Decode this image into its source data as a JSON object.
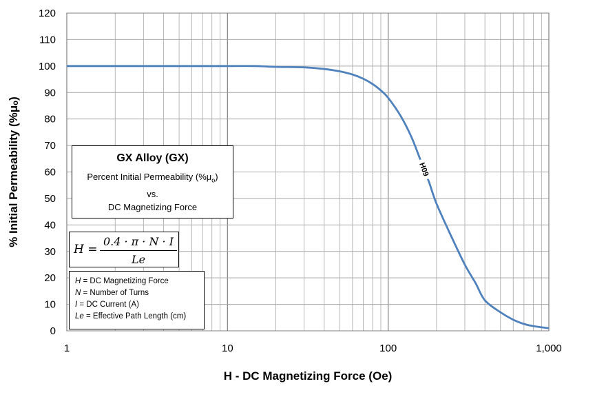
{
  "chart_data": {
    "type": "line",
    "xscale": "log",
    "xlim": [
      1,
      1000
    ],
    "ylim": [
      0,
      120
    ],
    "x_ticks": [
      1,
      10,
      100,
      1000
    ],
    "x_tick_labels": [
      "1",
      "10",
      "100",
      "1,000"
    ],
    "y_ticks": [
      0,
      10,
      20,
      30,
      40,
      50,
      60,
      70,
      80,
      90,
      100,
      110,
      120
    ],
    "xlabel": "H - DC Magnetizing  Force (Oe)",
    "ylabel": "% Initial Permeability (%μₒ)",
    "grid": true,
    "series": [
      {
        "name": "H09",
        "color": "#4F81BD",
        "x": [
          1,
          5,
          10,
          15,
          20,
          30,
          40,
          50,
          60,
          70,
          80,
          90,
          100,
          120,
          140,
          160,
          180,
          200,
          250,
          300,
          350,
          400,
          500,
          600,
          700,
          800,
          1000
        ],
        "y": [
          100,
          100,
          100,
          100,
          99.7,
          99.5,
          98.9,
          98,
          96.8,
          95.2,
          93.2,
          90.8,
          88,
          81,
          73,
          64,
          56,
          48,
          35,
          25,
          18,
          11.5,
          7,
          4.2,
          2.6,
          1.8,
          1
        ]
      }
    ]
  },
  "title_box": {
    "title": "GX Alloy  (GX)",
    "line1_prefix": "Percent Initial Permeability (%μ",
    "line1_sub": "o",
    "line1_suffix": ")",
    "line2": "vs.",
    "line3": "DC Magnetizing Force"
  },
  "formula": {
    "lhs": "H =",
    "numerator": "0.4 · π · N · I",
    "denominator": "Le"
  },
  "legend": {
    "h_sym": "H",
    "h_text": " = DC Magnetizing Force",
    "n_sym": "N",
    "n_text": " = Number of Turns",
    "i_sym": "I",
    "i_text": " = DC Current (A)",
    "le_sym": "Le",
    "le_text": " = Effective Path Length (cm)"
  }
}
